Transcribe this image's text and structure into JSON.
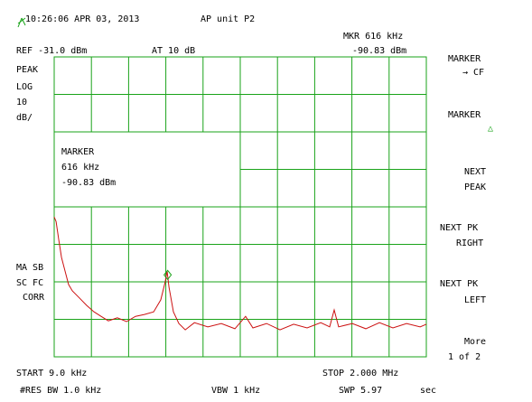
{
  "header": {
    "timestamp": "10:26:06 APR 03, 2013",
    "title": "AP unit P2",
    "marker_readout": "MKR 616 kHz",
    "ref": "REF -31.0 dBm",
    "atten": "AT 10  dB",
    "marker_level": "-90.83 dBm"
  },
  "left_labels": {
    "detector": "PEAK",
    "scale": "LOG",
    "div": "10",
    "unit": "dB/",
    "avg": "MA SB",
    "sc": "SC FC",
    "corr": "CORR"
  },
  "marker_box": {
    "title": "MARKER",
    "freq": "616 kHz",
    "level": "-90.83 dBm"
  },
  "softkeys": [
    {
      "line1": "MARKER",
      "line2": "→ CF"
    },
    {
      "line1": "MARKER",
      "line2": "△"
    },
    {
      "line1": "NEXT",
      "line2": "PEAK"
    },
    {
      "line1": "NEXT PK",
      "line2": "RIGHT"
    },
    {
      "line1": "NEXT PK",
      "line2": "LEFT"
    },
    {
      "line1": "More",
      "line2": "1 of 2"
    }
  ],
  "footer": {
    "start": "START 9.0  kHz",
    "stop": "STOP 2.000  MHz",
    "rbw": "#RES BW 1.0  kHz",
    "vbw": "VBW 1 kHz",
    "swp": "SWP 5.97",
    "swp_unit": "sec"
  },
  "trace": {
    "color": "#cc1111",
    "xlim": [
      9,
      2000
    ],
    "ylim": [
      -111,
      -31
    ],
    "x": [
      9,
      19,
      33,
      48,
      67,
      86,
      106,
      144,
      183,
      222,
      260,
      299,
      347,
      396,
      444,
      492,
      541,
      579,
      603,
      613,
      623,
      647,
      676,
      710,
      759,
      831,
      903,
      976,
      1033,
      1072,
      1145,
      1217,
      1290,
      1362,
      1435,
      1483,
      1507,
      1531,
      1604,
      1676,
      1749,
      1821,
      1894,
      1967,
      2000
    ],
    "values": [
      -73.7,
      -74.9,
      -79.7,
      -84.5,
      -88.1,
      -91.7,
      -93.4,
      -95.3,
      -97.3,
      -99.0,
      -100.2,
      -101.4,
      -100.6,
      -101.6,
      -100.2,
      -99.7,
      -99.0,
      -95.8,
      -91.0,
      -88.1,
      -92.4,
      -99.0,
      -102.1,
      -103.8,
      -101.9,
      -103.0,
      -102.1,
      -103.5,
      -100.2,
      -103.3,
      -102.1,
      -103.8,
      -102.3,
      -103.3,
      -101.9,
      -103.0,
      -98.5,
      -103.0,
      -102.1,
      -103.5,
      -101.9,
      -103.3,
      -102.1,
      -103.0,
      -102.3
    ],
    "marker": {
      "x": 616,
      "y": -90.83
    }
  }
}
